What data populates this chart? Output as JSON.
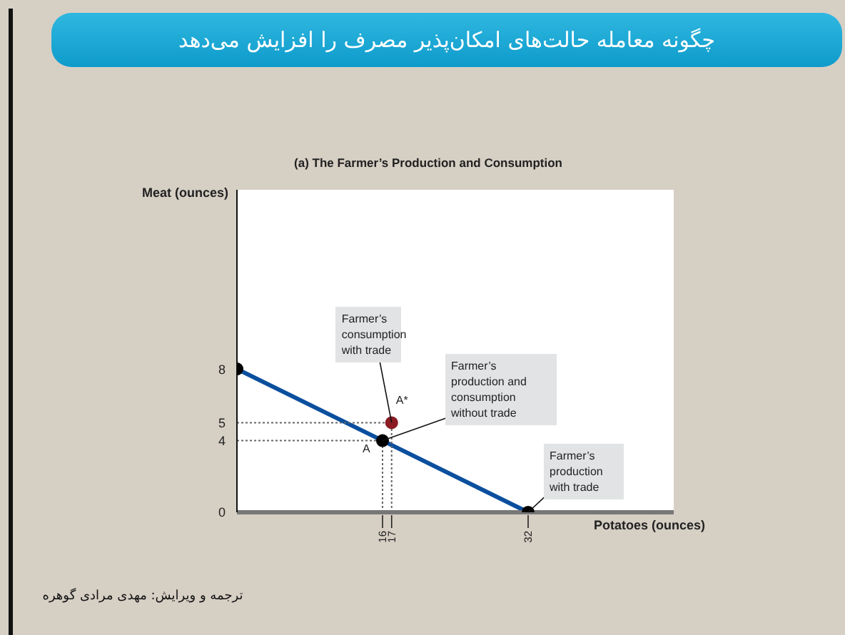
{
  "chart_data": {
    "type": "line",
    "title": "چگونه معامله حالت‌های امکان‌پذیر مصرف را افزایش می‌دهد",
    "subtitle": "(a) The Farmer’s Production and Consumption",
    "xlabel": "Potatoes (ounces)",
    "ylabel": "Meat (ounces)",
    "xlim": [
      0,
      48
    ],
    "ylim": [
      0,
      18
    ],
    "xticks": [
      16,
      17,
      32
    ],
    "yticks": [
      0,
      4,
      5,
      8
    ],
    "grid": false,
    "legend": false,
    "marker": "circle",
    "series": [
      {
        "type": "line",
        "color": "#0b4f9e",
        "x": [
          0,
          32
        ],
        "values": [
          8,
          0
        ],
        "marker": "none",
        "line_style": "solid"
      },
      {
        "type": "line",
        "color": "#666666",
        "x": [
          0,
          17
        ],
        "values": [
          5,
          5
        ],
        "marker": "none",
        "line_style": "dotted"
      },
      {
        "type": "line",
        "color": "#666666",
        "x": [
          0,
          16
        ],
        "values": [
          4,
          4
        ],
        "marker": "none",
        "line_style": "dotted"
      },
      {
        "type": "line",
        "color": "#666666",
        "x": [
          16,
          16
        ],
        "values": [
          0,
          4
        ],
        "marker": "none",
        "line_style": "dotted"
      },
      {
        "type": "line",
        "color": "#666666",
        "x": [
          17,
          17
        ],
        "values": [
          0,
          5
        ],
        "marker": "none",
        "line_style": "dotted"
      },
      {
        "type": "scatter",
        "color": "#000000",
        "x": [
          0,
          16,
          32
        ],
        "values": [
          8,
          4,
          0
        ]
      },
      {
        "type": "scatter",
        "color": "#8b1c24",
        "x": [
          17
        ],
        "values": [
          5
        ]
      }
    ],
    "annotations": [
      {
        "text": "A",
        "x": 16,
        "y": 4
      },
      {
        "text": "A*",
        "x": 17,
        "y": 5
      },
      {
        "text": "Farmer’s consumption with trade",
        "x": 17,
        "y": 5
      },
      {
        "text": "Farmer’s production and consumption without trade",
        "x": 16,
        "y": 4
      },
      {
        "text": "Farmer’s production with trade",
        "x": 32,
        "y": 0
      },
      "ترجمه و ویرایش: مهدی مرادی گوهره"
    ]
  }
}
